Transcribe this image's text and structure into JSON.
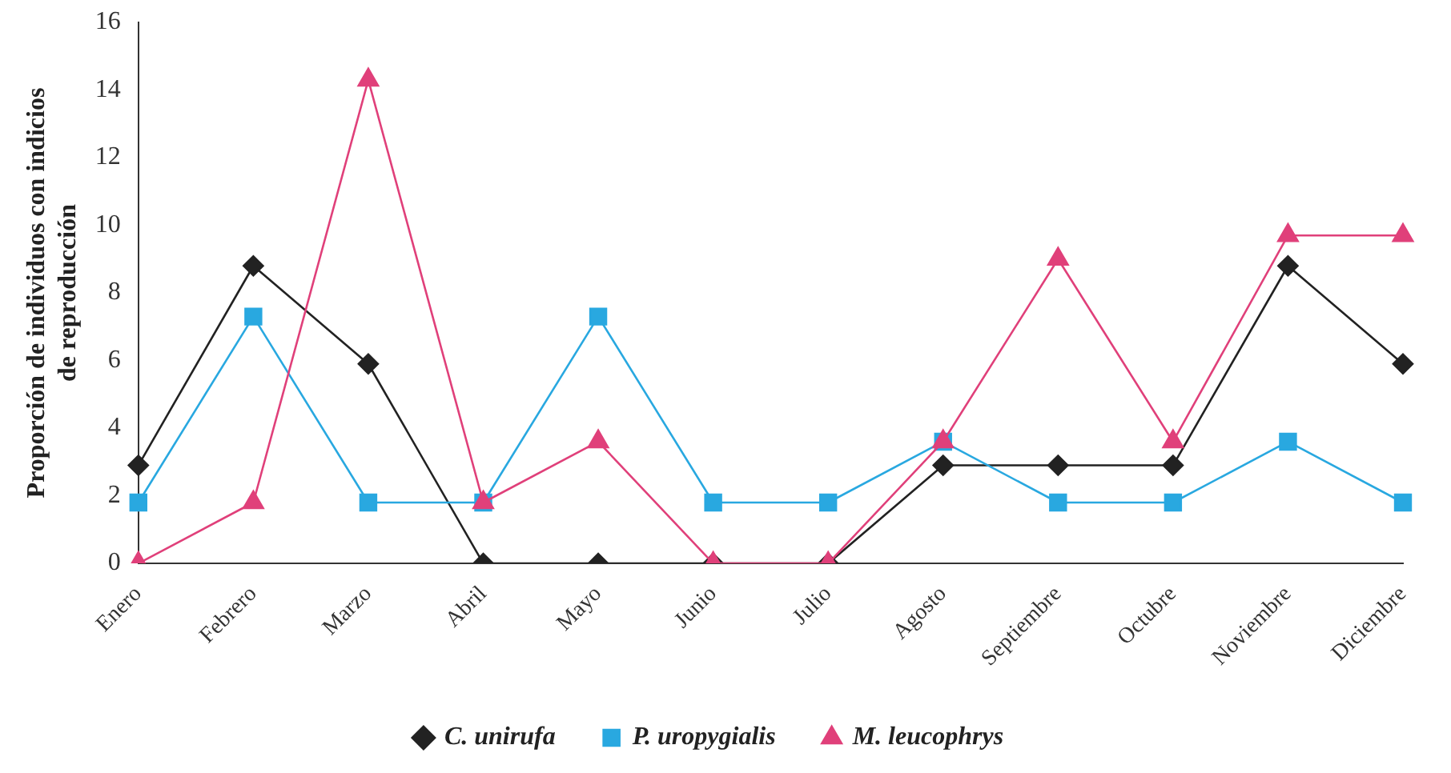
{
  "chart_data": {
    "type": "line",
    "ylabel": "Proporción de individuos con indicios de reproducción",
    "categories": [
      "Enero",
      "Febrero",
      "Marzo",
      "Abril",
      "Mayo",
      "Junio",
      "Julio",
      "Agosto",
      "Septiembre",
      "Octubre",
      "Noviembre",
      "Diciembre"
    ],
    "series": [
      {
        "name": "C. unirufa",
        "color": "#222222",
        "marker": "diamond",
        "values": [
          2.9,
          8.8,
          5.9,
          0,
          0,
          0,
          0,
          2.9,
          2.9,
          2.9,
          8.8,
          5.9
        ]
      },
      {
        "name": "P. uropygialis",
        "color": "#29a8e0",
        "marker": "square",
        "values": [
          1.8,
          7.3,
          1.8,
          1.8,
          7.3,
          1.8,
          1.8,
          3.6,
          1.8,
          1.8,
          3.6,
          1.8
        ]
      },
      {
        "name": "M. leucophrys",
        "color": "#e0407a",
        "marker": "triangle",
        "values": [
          0,
          1.8,
          14.3,
          1.8,
          3.6,
          0,
          0,
          3.6,
          9.0,
          3.6,
          9.7,
          9.7
        ]
      }
    ],
    "ylim": [
      0,
      16
    ],
    "yticks": [
      0,
      2,
      4,
      6,
      8,
      10,
      12,
      14,
      16
    ],
    "grid": false,
    "legend": "bottom"
  }
}
